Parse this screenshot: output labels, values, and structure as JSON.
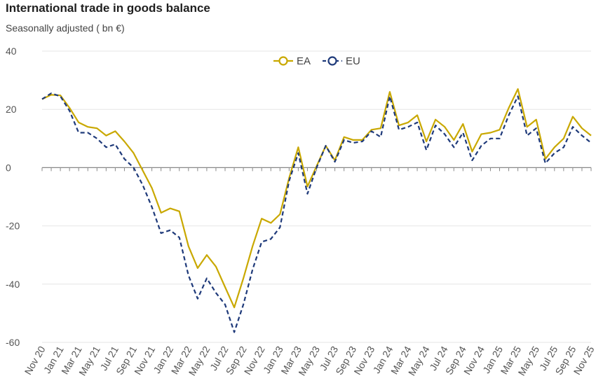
{
  "chart_data": {
    "type": "line",
    "title": "International trade in goods balance",
    "subtitle": "Seasonally adjusted ( bn €)",
    "ylim": [
      -60,
      40
    ],
    "yticks": [
      40,
      20,
      0,
      -20,
      -40,
      -60
    ],
    "x_tick_labels": [
      "Nov 20",
      "Jan 21",
      "Mar 21",
      "May 21",
      "Jul 21",
      "Sep 21",
      "Nov 21",
      "Jan 22",
      "Mar 22",
      "May 22",
      "Jul 22",
      "Sep 22",
      "Nov 22",
      "Jan 23",
      "Mar 23",
      "May 23",
      "Jul 23",
      "Sep 23",
      "Nov 23",
      "Jan 24",
      "Mar 24",
      "May 24",
      "Jul 24",
      "Sep 24",
      "Nov 24",
      "Jan 25",
      "Mar 25",
      "May 25",
      "Jul 25",
      "Sep 25",
      "Nov 25"
    ],
    "legend_position": "top-center",
    "grid": true,
    "series": [
      {
        "name": "EA",
        "color": "#c9a800",
        "dash": "solid",
        "values": [
          23.5,
          25,
          24.8,
          20.5,
          15.5,
          14,
          13.5,
          11,
          12.5,
          9,
          5,
          -1,
          -7,
          -15.5,
          -14,
          -15,
          -27,
          -34.5,
          -30,
          -34,
          -41,
          -48,
          -38,
          -27,
          -17.5,
          -19,
          -16,
          -3.5,
          7,
          -6.5,
          0.5,
          7.5,
          2.5,
          10.5,
          9.5,
          9.5,
          13,
          13.5,
          26,
          14.5,
          15.5,
          18,
          9,
          16.5,
          14,
          9.5,
          15,
          5.5,
          11.5,
          12,
          13,
          20.5,
          27,
          14,
          16.5,
          3,
          7,
          10,
          17.5,
          13.5,
          11
        ]
      },
      {
        "name": "EU",
        "color": "#1f3a7a",
        "dash": "dashed",
        "values": [
          23.5,
          25.5,
          24.5,
          19.5,
          12,
          12,
          10,
          7,
          8,
          3,
          0,
          -6,
          -13.5,
          -22.5,
          -21.5,
          -24,
          -37,
          -45,
          -38,
          -43,
          -47,
          -56.5,
          -47,
          -35,
          -25.5,
          -24.5,
          -20.5,
          -4.5,
          5,
          -9,
          0,
          7.5,
          2,
          9.5,
          8.5,
          9,
          12.5,
          10.5,
          24.5,
          13,
          14,
          15.5,
          6,
          14.5,
          11.5,
          7,
          12,
          2.5,
          7.5,
          10,
          10,
          18,
          24.5,
          11,
          13.5,
          1.5,
          5,
          7,
          14,
          11,
          8.5
        ]
      }
    ]
  }
}
